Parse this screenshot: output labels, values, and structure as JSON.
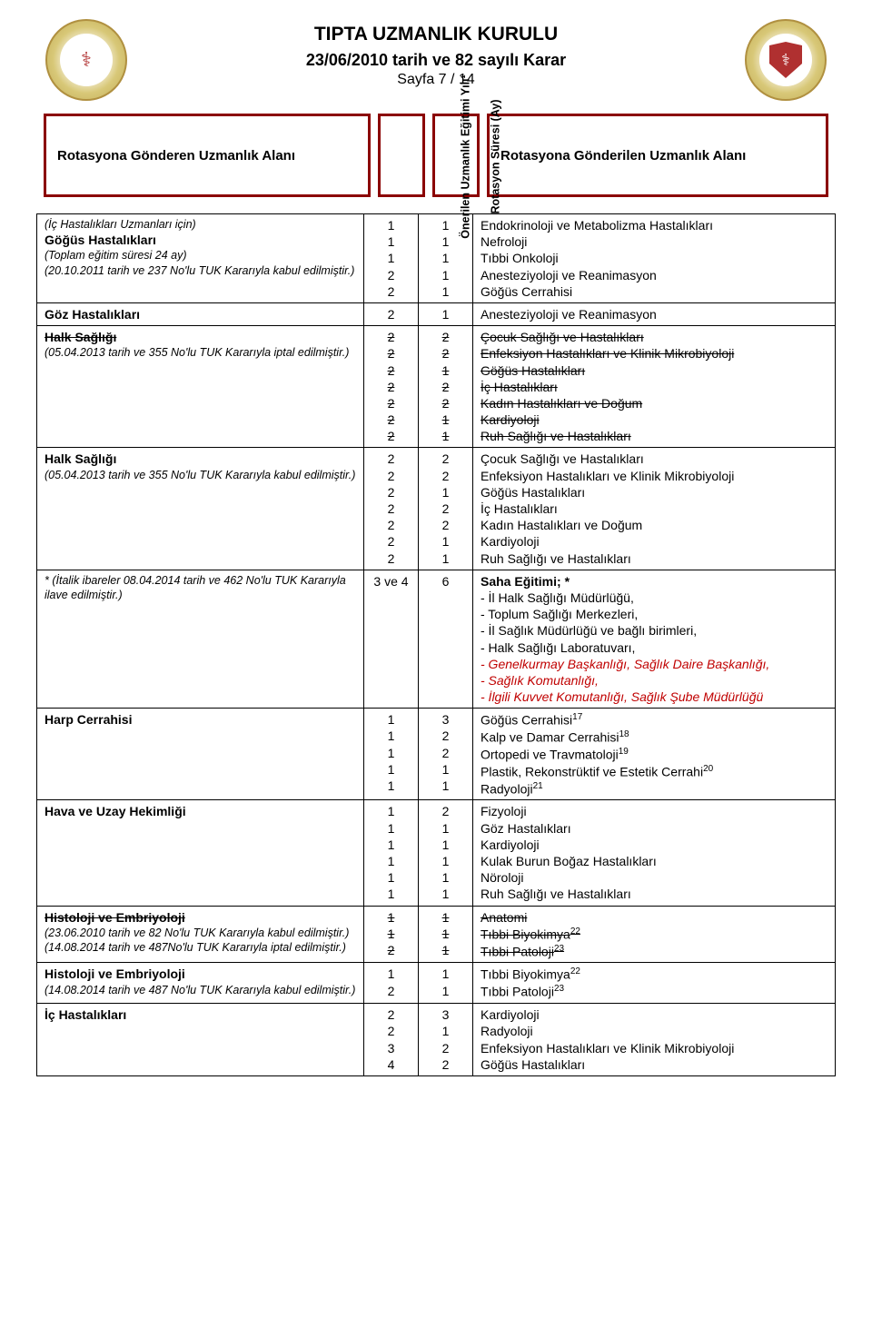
{
  "header": {
    "title_main": "TIPTA UZMANLIK KURULU",
    "title_sub": "23/06/2010 tarih ve 82 sayılı Karar",
    "page_line": "Sayfa 7 / 14"
  },
  "col_headers": {
    "c1": "Rotasyona Gönderen Uzmanlık Alanı",
    "c2": "Önerilen Uzmanlık Eğitimi Yılı¹",
    "c3": "Rotasyon Süresi (Ay)",
    "c4": "Rotasyona Gönderilen Uzmanlık Alanı"
  },
  "rows": [
    {
      "c1_lines": [
        {
          "t": "(İç Hastalıkları Uzmanları için)",
          "cls": "note"
        },
        {
          "t": "Göğüs Hastalıkları",
          "cls": "row-bold"
        },
        {
          "t": "(Toplam eğitim süresi  24 ay)",
          "cls": "note"
        },
        {
          "t": "(20.10.2011 tarih ve 237 No'lu TUK Kararıyla kabul edilmiştir.)",
          "cls": "note"
        }
      ],
      "c2": [
        "1",
        "1",
        "1",
        "2",
        "2"
      ],
      "c3": [
        "1",
        "1",
        "1",
        "1",
        "1"
      ],
      "c4": [
        "Endokrinoloji ve Metabolizma Hastalıkları",
        "Nefroloji",
        "Tıbbi Onkoloji",
        "Anesteziyoloji ve Reanimasyon",
        "Göğüs Cerrahisi"
      ]
    },
    {
      "c1_lines": [
        {
          "t": "Göz Hastalıkları",
          "cls": "row-bold"
        }
      ],
      "c2": [
        "2"
      ],
      "c3": [
        "1"
      ],
      "c4": [
        "Anesteziyoloji ve Reanimasyon"
      ]
    },
    {
      "c1_lines": [
        {
          "t": "Halk Sağlığı",
          "cls": "row-bold strike"
        },
        {
          "t": "(05.04.2013 tarih ve 355 No'lu TUK Kararıyla iptal edilmiştir.)",
          "cls": "note"
        }
      ],
      "c2": [
        "2",
        "2",
        "2",
        "2",
        "2",
        "2",
        "2"
      ],
      "c2_cls": "strike",
      "c3": [
        "2",
        "2",
        "1",
        "2",
        "2",
        "1",
        "1"
      ],
      "c3_cls": "strike",
      "c4": [
        "Çocuk Sağlığı ve Hastalıkları",
        "Enfeksiyon Hastalıkları ve Klinik Mikrobiyoloji",
        "Göğüs Hastalıkları",
        "İç Hastalıkları",
        "Kadın Hastalıkları ve Doğum",
        "Kardiyoloji",
        "Ruh Sağlığı ve Hastalıkları"
      ],
      "c4_cls": "strike"
    },
    {
      "c1_lines": [
        {
          "t": "Halk Sağlığı",
          "cls": "row-bold"
        },
        {
          "t": "(05.04.2013 tarih ve 355 No'lu TUK Kararıyla kabul edilmiştir.)",
          "cls": "note"
        }
      ],
      "c2": [
        "2",
        "2",
        "2",
        "2",
        "2",
        "2",
        "2"
      ],
      "c3": [
        "2",
        "2",
        "1",
        "2",
        "2",
        "1",
        "1"
      ],
      "c4": [
        "Çocuk Sağlığı ve Hastalıkları",
        "Enfeksiyon Hastalıkları ve Klinik Mikrobiyoloji",
        "Göğüs Hastalıkları",
        "İç Hastalıkları",
        "Kadın Hastalıkları ve Doğum",
        "Kardiyoloji",
        "Ruh Sağlığı ve Hastalıkları"
      ]
    },
    {
      "c1_lines": [
        {
          "t": "* (İtalik ibareler 08.04.2014 tarih ve 462 No'lu TUK Kararıyla ilave edilmiştir.)",
          "cls": "note"
        }
      ],
      "c2": [
        "3 ve 4"
      ],
      "c3": [
        "6"
      ],
      "c4_block": [
        {
          "t": "Saha Eğitimi; *",
          "cls": "row-bold"
        },
        {
          "t": "- İl Halk Sağlığı Müdürlüğü,"
        },
        {
          "t": "- Toplum Sağlığı Merkezleri,"
        },
        {
          "t": "- İl Sağlık Müdürlüğü ve bağlı birimleri,"
        },
        {
          "t": "- Halk Sağlığı Laboratuvarı,"
        },
        {
          "t": "- Genelkurmay Başkanlığı, Sağlık Daire Başkanlığı,",
          "cls": "red-italic"
        },
        {
          "t": "- Sağlık Komutanlığı,",
          "cls": "red-italic"
        },
        {
          "t": "- İlgili Kuvvet Komutanlığı, Sağlık Şube Müdürlüğü",
          "cls": "red-italic"
        }
      ]
    },
    {
      "c1_lines": [
        {
          "t": "Harp Cerrahisi",
          "cls": "row-bold"
        }
      ],
      "c2": [
        "1",
        "1",
        "1",
        "1",
        "1"
      ],
      "c3": [
        "3",
        "2",
        "2",
        "1",
        "1"
      ],
      "c4_sup": [
        {
          "t": "Göğüs Cerrahisi",
          "s": "17"
        },
        {
          "t": "Kalp ve Damar Cerrahisi",
          "s": "18"
        },
        {
          "t": "Ortopedi ve Travmatoloji",
          "s": "19"
        },
        {
          "t": "Plastik, Rekonstrüktif ve Estetik Cerrahi",
          "s": "20"
        },
        {
          "t": "Radyoloji",
          "s": "21"
        }
      ]
    },
    {
      "c1_lines": [
        {
          "t": "Hava ve Uzay Hekimliği",
          "cls": "row-bold"
        }
      ],
      "c2": [
        "1",
        "1",
        "1",
        "1",
        "1",
        "1"
      ],
      "c3": [
        "2",
        "1",
        "1",
        "1",
        "1",
        "1"
      ],
      "c4": [
        "Fizyoloji",
        "Göz Hastalıkları",
        "Kardiyoloji",
        "Kulak Burun Boğaz Hastalıkları",
        "Nöroloji",
        "Ruh Sağlığı ve Hastalıkları"
      ]
    },
    {
      "c1_lines": [
        {
          "t": "Histoloji ve Embriyoloji",
          "cls": "row-bold strike"
        },
        {
          "t": "(23.06.2010 tarih ve 82 No'lu TUK Kararıyla kabul edilmiştir.)",
          "cls": "note"
        },
        {
          "t": "(14.08.2014  tarih ve 487No'lu TUK Kararıyla iptal edilmiştir.)",
          "cls": "note"
        }
      ],
      "c2": [
        "1",
        "1",
        "2"
      ],
      "c2_cls": "strike",
      "c3": [
        "1",
        "1",
        "1"
      ],
      "c3_cls": "strike",
      "c4_sup": [
        {
          "t": "Anatomi",
          "cls": "strike"
        },
        {
          "t": "Tıbbi Biyokimya",
          "s": "22",
          "cls": "strike"
        },
        {
          "t": "Tıbbi Patoloji",
          "s": "23",
          "cls": "strike"
        }
      ]
    },
    {
      "c1_lines": [
        {
          "t": "Histoloji ve Embriyoloji",
          "cls": "row-bold"
        },
        {
          "t": "(14.08.2014  tarih ve 487 No'lu TUK Kararıyla kabul edilmiştir.)",
          "cls": "note"
        }
      ],
      "c2": [
        "1",
        "2"
      ],
      "c3": [
        "1",
        "1"
      ],
      "c4_sup": [
        {
          "t": "Tıbbi Biyokimya",
          "s": "22"
        },
        {
          "t": "Tıbbi Patoloji",
          "s": "23"
        }
      ]
    },
    {
      "c1_lines": [
        {
          "t": "İç Hastalıkları",
          "cls": "row-bold"
        }
      ],
      "c2": [
        "2",
        "2",
        "3",
        "4"
      ],
      "c3": [
        "3",
        "1",
        "2",
        "2"
      ],
      "c4": [
        "Kardiyoloji",
        "Radyoloji",
        "Enfeksiyon Hastalıkları ve Klinik Mikrobiyoloji",
        "Göğüs Hastalıkları"
      ]
    }
  ],
  "style": {
    "border_color": "#8b0000",
    "page_bg": "#ffffff",
    "red_text": "#c00000"
  }
}
